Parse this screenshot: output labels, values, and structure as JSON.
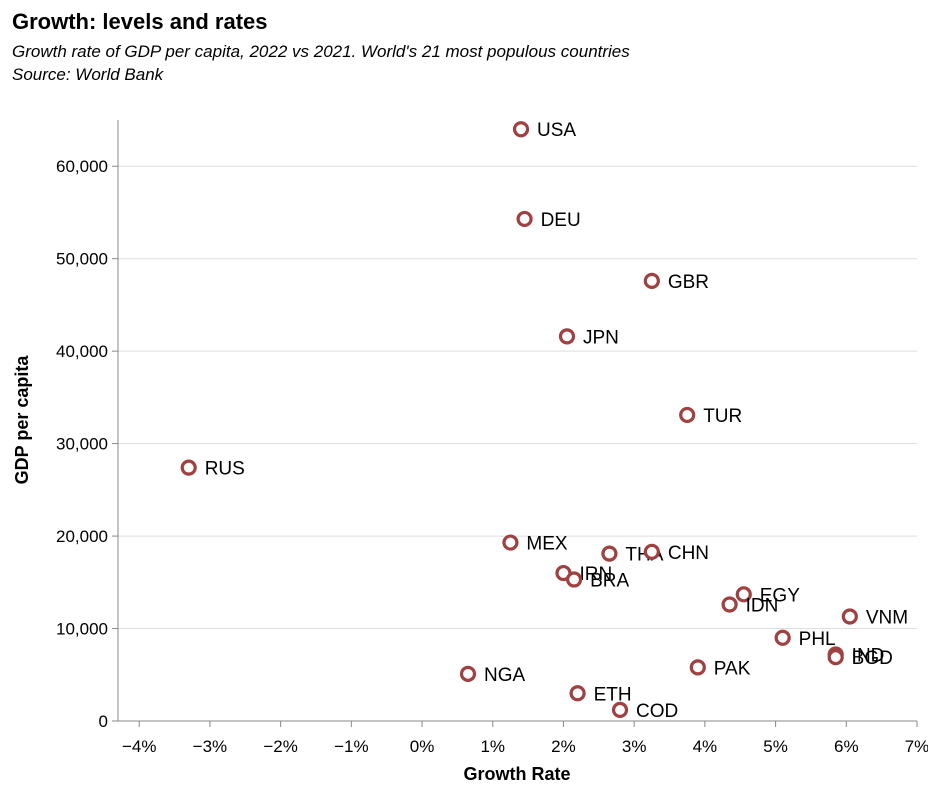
{
  "chart_data": {
    "type": "scatter",
    "title": "Growth: levels and rates",
    "subtitle": "Growth rate of GDP per capita, 2022 vs 2021. World's 21 most populous countries",
    "source": "Source: World Bank",
    "xlabel": "Growth Rate",
    "ylabel": "GDP per capita",
    "xlim": [
      -4.3,
      7
    ],
    "ylim": [
      0,
      65000
    ],
    "x_ticks": [
      -4,
      -3,
      -2,
      -1,
      0,
      1,
      2,
      3,
      4,
      5,
      6,
      7
    ],
    "x_tick_labels": [
      "−4%",
      "−3%",
      "−2%",
      "−1%",
      "0%",
      "1%",
      "2%",
      "3%",
      "4%",
      "5%",
      "6%",
      "7%"
    ],
    "y_ticks": [
      0,
      10000,
      20000,
      30000,
      40000,
      50000,
      60000
    ],
    "y_tick_labels": [
      "0",
      "10,000",
      "20,000",
      "30,000",
      "40,000",
      "50,000",
      "60,000"
    ],
    "grid": "horizontal",
    "marker_color": "#a04040",
    "points": [
      {
        "label": "USA",
        "x": 1.4,
        "y": 64000
      },
      {
        "label": "DEU",
        "x": 1.45,
        "y": 54300
      },
      {
        "label": "GBR",
        "x": 3.25,
        "y": 47600
      },
      {
        "label": "JPN",
        "x": 2.05,
        "y": 41600
      },
      {
        "label": "TUR",
        "x": 3.75,
        "y": 33100
      },
      {
        "label": "RUS",
        "x": -3.3,
        "y": 27400
      },
      {
        "label": "MEX",
        "x": 1.25,
        "y": 19300
      },
      {
        "label": "THA",
        "x": 2.65,
        "y": 18100
      },
      {
        "label": "CHN",
        "x": 3.25,
        "y": 18300
      },
      {
        "label": "IRN",
        "x": 2.0,
        "y": 16000
      },
      {
        "label": "BRA",
        "x": 2.15,
        "y": 15300
      },
      {
        "label": "EGY",
        "x": 4.55,
        "y": 13700
      },
      {
        "label": "IDN",
        "x": 4.35,
        "y": 12600
      },
      {
        "label": "VNM",
        "x": 6.05,
        "y": 11300
      },
      {
        "label": "PHL",
        "x": 5.1,
        "y": 9000
      },
      {
        "label": "IND",
        "x": 5.85,
        "y": 7200
      },
      {
        "label": "BGD",
        "x": 5.85,
        "y": 6900
      },
      {
        "label": "PAK",
        "x": 3.9,
        "y": 5800
      },
      {
        "label": "NGA",
        "x": 0.65,
        "y": 5100
      },
      {
        "label": "ETH",
        "x": 2.2,
        "y": 3000
      },
      {
        "label": "COD",
        "x": 2.8,
        "y": 1200
      }
    ]
  }
}
